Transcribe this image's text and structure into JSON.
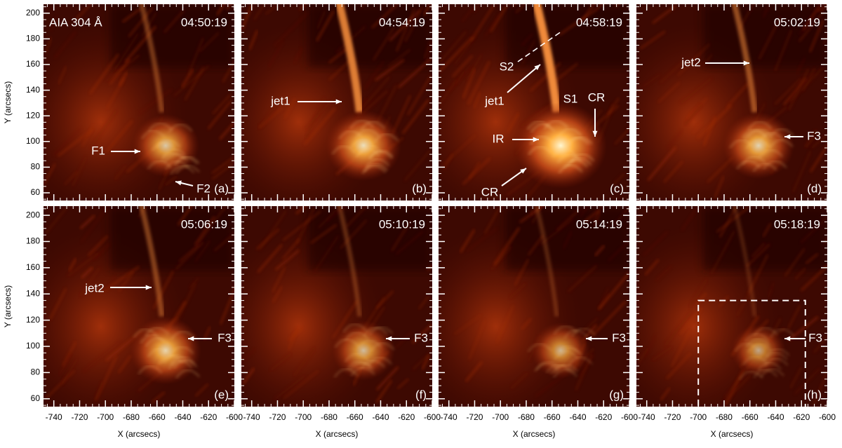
{
  "figure": {
    "instrument": "AIA 304 Å",
    "x_label": "X (arcsecs)",
    "y_label": "Y (arcsecs)",
    "xlim": [
      -748,
      -600
    ],
    "ylim": [
      54,
      207
    ],
    "xticks": [
      -740,
      -720,
      -700,
      -680,
      -660,
      -640,
      -620,
      -600
    ],
    "yticks": [
      60,
      80,
      100,
      120,
      140,
      160,
      180,
      200
    ],
    "panels": [
      {
        "time": "04:50:19",
        "letter": "(a)",
        "annotations": [
          "F1",
          "F2"
        ]
      },
      {
        "time": "04:54:19",
        "letter": "(b)",
        "annotations": [
          "jet1"
        ]
      },
      {
        "time": "04:58:19",
        "letter": "(c)",
        "annotations": [
          "S2",
          "jet1",
          "S1",
          "CR",
          "IR",
          "CR"
        ]
      },
      {
        "time": "05:02:19",
        "letter": "(d)",
        "annotations": [
          "jet2",
          "F3"
        ]
      },
      {
        "time": "05:06:19",
        "letter": "(e)",
        "annotations": [
          "jet2",
          "F3"
        ]
      },
      {
        "time": "05:10:19",
        "letter": "(f)",
        "annotations": [
          "F3"
        ]
      },
      {
        "time": "05:14:19",
        "letter": "(g)",
        "annotations": [
          "F3"
        ]
      },
      {
        "time": "05:18:19",
        "letter": "(h)",
        "annotations": [
          "F3"
        ]
      }
    ]
  }
}
